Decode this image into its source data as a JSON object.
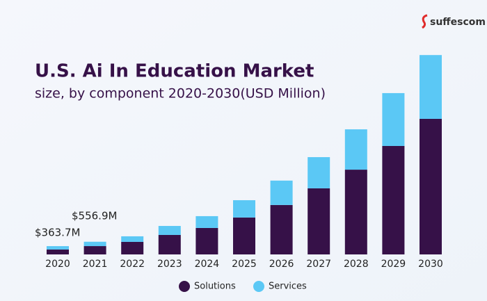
{
  "chart_data": {
    "type": "stacked_bar",
    "brand": "suffescom",
    "title": "U.S. Ai In Education Market",
    "subtitle": "size, by component 2020-2030(USD Million)",
    "categories": [
      "2020",
      "2021",
      "2022",
      "2023",
      "2024",
      "2025",
      "2026",
      "2027",
      "2028",
      "2029",
      "2030"
    ],
    "series": [
      {
        "name": "Solutions",
        "color": "#361148",
        "values": [
          215,
          365,
          550,
          855,
          1160,
          1620,
          2170,
          2900,
          3720,
          4760,
          5950
        ]
      },
      {
        "name": "Services",
        "color": "#5bc8f5",
        "values": [
          148.7,
          191.9,
          245,
          395,
          520,
          760,
          1070,
          1370,
          1770,
          2320,
          2800
        ]
      }
    ],
    "annotations": [
      "$363.7M",
      "$556.9M"
    ],
    "ylim": [
      0,
      9000
    ]
  }
}
